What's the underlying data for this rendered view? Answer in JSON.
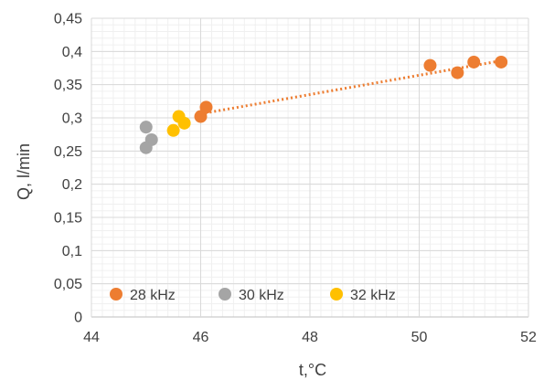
{
  "chart_data": {
    "type": "scatter",
    "title": "",
    "xlabel": "t,°C",
    "ylabel": "Q, l/min",
    "xlim": [
      44,
      52
    ],
    "ylim": [
      0,
      0.45
    ],
    "x_ticks": [
      44,
      46,
      48,
      50,
      52
    ],
    "x_tick_labels": [
      "44",
      "46",
      "48",
      "50",
      "52"
    ],
    "y_ticks": [
      0,
      0.05,
      0.1,
      0.15,
      0.2,
      0.25,
      0.3,
      0.35,
      0.4,
      0.45
    ],
    "y_tick_labels": [
      "0",
      "0,05",
      "0,1",
      "0,15",
      "0,2",
      "0,25",
      "0,3",
      "0,35",
      "0,4",
      "0,45"
    ],
    "grid": true,
    "minor_grid": true,
    "legend_position": "bottom-left inside",
    "series": [
      {
        "name": "28 kHz",
        "color": "#ED7D31",
        "points": [
          {
            "x": 46.0,
            "y": 0.302
          },
          {
            "x": 46.1,
            "y": 0.316
          },
          {
            "x": 50.2,
            "y": 0.379
          },
          {
            "x": 50.7,
            "y": 0.368
          },
          {
            "x": 51.0,
            "y": 0.384
          },
          {
            "x": 51.5,
            "y": 0.384
          }
        ],
        "trendline": {
          "style": "dotted",
          "from": {
            "x": 46.0,
            "y": 0.306
          },
          "to": {
            "x": 51.5,
            "y": 0.386
          }
        }
      },
      {
        "name": "30 kHz",
        "color": "#A5A5A5",
        "points": [
          {
            "x": 45.0,
            "y": 0.286
          },
          {
            "x": 45.1,
            "y": 0.267
          },
          {
            "x": 45.0,
            "y": 0.255
          }
        ]
      },
      {
        "name": "32 kHz",
        "color": "#FFC000",
        "points": [
          {
            "x": 45.6,
            "y": 0.302
          },
          {
            "x": 45.7,
            "y": 0.292
          },
          {
            "x": 45.5,
            "y": 0.281
          }
        ]
      }
    ]
  }
}
